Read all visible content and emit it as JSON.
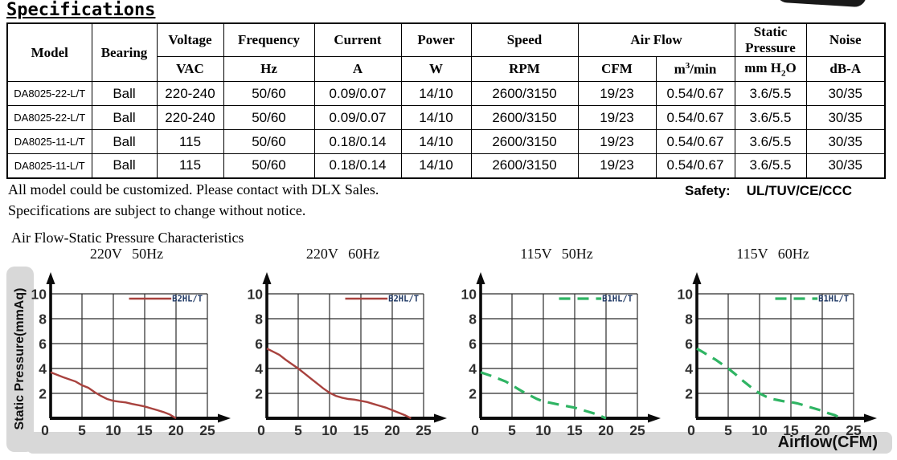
{
  "title": "Specifications",
  "table": {
    "columns": [
      {
        "label": "Model"
      },
      {
        "label": "Bearing"
      },
      {
        "label": "Voltage",
        "unit": "VAC"
      },
      {
        "label": "Frequency",
        "unit": "Hz"
      },
      {
        "label": "Current",
        "unit": "A"
      },
      {
        "label": "Power",
        "unit": "W"
      },
      {
        "label": "Speed",
        "unit": "RPM"
      },
      {
        "label": "Air Flow",
        "unit_cfm": "CFM",
        "unit_m3_base": "m",
        "unit_m3_sup": "3",
        "unit_m3_rest": "/min"
      },
      {
        "label": "Static Pressure",
        "unit_base": "mm H",
        "unit_sub": "2",
        "unit_rest": "O"
      },
      {
        "label": "Noise",
        "unit": "dB-A"
      }
    ],
    "rows": [
      [
        "DA8025-22-L/T",
        "Ball",
        "220-240",
        "50/60",
        "0.09/0.07",
        "14/10",
        "2600/3150",
        "19/23",
        "0.54/0.67",
        "3.6/5.5",
        "30/35"
      ],
      [
        "DA8025-22-L/T",
        "Ball",
        "220-240",
        "50/60",
        "0.09/0.07",
        "14/10",
        "2600/3150",
        "19/23",
        "0.54/0.67",
        "3.6/5.5",
        "30/35"
      ],
      [
        "DA8025-11-L/T",
        "Ball",
        "115",
        "50/60",
        "0.18/0.14",
        "14/10",
        "2600/3150",
        "19/23",
        "0.54/0.67",
        "3.6/5.5",
        "30/35"
      ],
      [
        "DA8025-11-L/T",
        "Ball",
        "115",
        "50/60",
        "0.18/0.14",
        "14/10",
        "2600/3150",
        "19/23",
        "0.54/0.67",
        "3.6/5.5",
        "30/35"
      ]
    ]
  },
  "notes": {
    "line1": "All model could be customized. Please contact with DLX Sales.",
    "line2": "Specifications are subject to change without notice.",
    "safety_label": "Safety:",
    "safety_value": "UL/TUV/CE/CCC"
  },
  "section_title": "Air Flow-Static Pressure Characteristics",
  "axes": {
    "y_label": "Static Pressure(mmAq)",
    "x_label": "Airflow(CFM)"
  },
  "colors": {
    "red_series": "#a8423e",
    "green_series": "#2fb463",
    "legend_text": "#1f3864",
    "bar_gray": "#d8d8d8"
  },
  "chart_data": [
    {
      "type": "line",
      "title": "220V 50Hz",
      "xlim": [
        0,
        25
      ],
      "ylim": [
        0,
        10
      ],
      "xticks": [
        0,
        5,
        10,
        15,
        20,
        25
      ],
      "yticks": [
        0,
        2,
        4,
        6,
        8,
        10
      ],
      "series": [
        {
          "name": "B2HL/T",
          "color": "#a8423e",
          "dashed": false,
          "points": [
            [
              0,
              3.7
            ],
            [
              2,
              3.3
            ],
            [
              4,
              2.95
            ],
            [
              5,
              2.65
            ],
            [
              6,
              2.45
            ],
            [
              7,
              2.1
            ],
            [
              8,
              1.8
            ],
            [
              9,
              1.55
            ],
            [
              10,
              1.4
            ],
            [
              11,
              1.33
            ],
            [
              12,
              1.27
            ],
            [
              13,
              1.15
            ],
            [
              14,
              1.05
            ],
            [
              15,
              0.95
            ],
            [
              16,
              0.8
            ],
            [
              17,
              0.65
            ],
            [
              18,
              0.5
            ],
            [
              19,
              0.3
            ],
            [
              20,
              0
            ]
          ]
        }
      ]
    },
    {
      "type": "line",
      "title": "220V 60Hz",
      "xlim": [
        0,
        25
      ],
      "ylim": [
        0,
        10
      ],
      "xticks": [
        0,
        5,
        10,
        15,
        20,
        25
      ],
      "yticks": [
        0,
        2,
        4,
        6,
        8,
        10
      ],
      "series": [
        {
          "name": "B2HL/T",
          "color": "#a8423e",
          "dashed": false,
          "points": [
            [
              0,
              5.6
            ],
            [
              1,
              5.35
            ],
            [
              2,
              5.1
            ],
            [
              3,
              4.7
            ],
            [
              4,
              4.35
            ],
            [
              5,
              4.0
            ],
            [
              6,
              3.6
            ],
            [
              7,
              3.2
            ],
            [
              8,
              2.8
            ],
            [
              9,
              2.4
            ],
            [
              10,
              2.05
            ],
            [
              11,
              1.8
            ],
            [
              12,
              1.65
            ],
            [
              13,
              1.55
            ],
            [
              14,
              1.5
            ],
            [
              15,
              1.4
            ],
            [
              16,
              1.3
            ],
            [
              17,
              1.15
            ],
            [
              18,
              1.0
            ],
            [
              19,
              0.85
            ],
            [
              20,
              0.65
            ],
            [
              21,
              0.45
            ],
            [
              22,
              0.25
            ],
            [
              23,
              0
            ]
          ]
        }
      ]
    },
    {
      "type": "line",
      "title": "115V 50Hz",
      "xlim": [
        0,
        25
      ],
      "ylim": [
        0,
        10
      ],
      "xticks": [
        0,
        5,
        10,
        15,
        20,
        25
      ],
      "yticks": [
        0,
        2,
        4,
        6,
        8,
        10
      ],
      "series": [
        {
          "name": "B1HL/T",
          "color": "#2fb463",
          "dashed": true,
          "points": [
            [
              0,
              3.7
            ],
            [
              2,
              3.35
            ],
            [
              4,
              2.95
            ],
            [
              5,
              2.65
            ],
            [
              6,
              2.35
            ],
            [
              7,
              2.05
            ],
            [
              8,
              1.8
            ],
            [
              9,
              1.55
            ],
            [
              10,
              1.35
            ],
            [
              11,
              1.25
            ],
            [
              12,
              1.15
            ],
            [
              13,
              1.05
            ],
            [
              14,
              0.95
            ],
            [
              15,
              0.85
            ],
            [
              16,
              0.7
            ],
            [
              17,
              0.55
            ],
            [
              18,
              0.4
            ],
            [
              19,
              0.2
            ],
            [
              20,
              0
            ]
          ]
        }
      ]
    },
    {
      "type": "line",
      "title": "115V 60Hz",
      "xlim": [
        0,
        25
      ],
      "ylim": [
        0,
        10
      ],
      "xticks": [
        0,
        5,
        10,
        15,
        20,
        25
      ],
      "yticks": [
        0,
        2,
        4,
        6,
        8,
        10
      ],
      "series": [
        {
          "name": "B1HL/T",
          "color": "#2fb463",
          "dashed": true,
          "points": [
            [
              0,
              5.6
            ],
            [
              1,
              5.3
            ],
            [
              2,
              5.0
            ],
            [
              3,
              4.7
            ],
            [
              4,
              4.35
            ],
            [
              5,
              4.0
            ],
            [
              6,
              3.6
            ],
            [
              7,
              3.15
            ],
            [
              8,
              2.75
            ],
            [
              9,
              2.35
            ],
            [
              10,
              2.0
            ],
            [
              11,
              1.75
            ],
            [
              12,
              1.55
            ],
            [
              13,
              1.45
            ],
            [
              14,
              1.35
            ],
            [
              15,
              1.3
            ],
            [
              16,
              1.2
            ],
            [
              17,
              1.05
            ],
            [
              18,
              0.9
            ],
            [
              19,
              0.75
            ],
            [
              20,
              0.6
            ],
            [
              21,
              0.4
            ],
            [
              22,
              0.25
            ],
            [
              23,
              0
            ]
          ]
        }
      ]
    }
  ]
}
